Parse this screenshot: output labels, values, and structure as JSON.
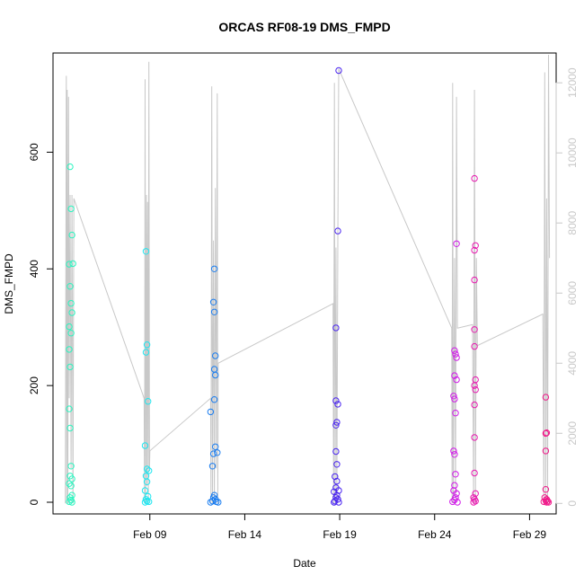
{
  "chart_data": {
    "type": "scatter",
    "title": "ORCAS RF08-19 DMS_FMPD",
    "xlabel": "Date",
    "ylabel": "DMS_FMPD",
    "x_axis": {
      "unit": "days (February 2016)",
      "range": [
        3.9,
        30.4
      ],
      "ticks": [
        {
          "value": 9,
          "label": "Feb 09"
        },
        {
          "value": 14,
          "label": "Feb 14"
        },
        {
          "value": 19,
          "label": "Feb 19"
        },
        {
          "value": 24,
          "label": "Feb 24"
        },
        {
          "value": 29,
          "label": "Feb 29"
        }
      ]
    },
    "y_axis": {
      "range": [
        -20,
        770
      ],
      "ticks": [
        {
          "value": 0,
          "label": "0"
        },
        {
          "value": 200,
          "label": "200"
        },
        {
          "value": 400,
          "label": "400"
        },
        {
          "value": 600,
          "label": "600"
        }
      ]
    },
    "y2_axis": {
      "range": [
        -300,
        12850
      ],
      "color": "#c8c8c8",
      "ticks": [
        {
          "value": 0,
          "label": "0"
        },
        {
          "value": 2000,
          "label": "2000"
        },
        {
          "value": 4000,
          "label": "4000"
        },
        {
          "value": 6000,
          "label": "6000"
        },
        {
          "value": 8000,
          "label": "8000"
        },
        {
          "value": 10000,
          "label": "10000"
        },
        {
          "value": 12000,
          "label": "12000"
        }
      ]
    },
    "grid": false,
    "background_series": {
      "color": "#c8c8c8",
      "points": [
        [
          4.55,
          0
        ],
        [
          4.6,
          12200
        ],
        [
          4.62,
          0
        ],
        [
          4.65,
          11800
        ],
        [
          4.68,
          0
        ],
        [
          4.72,
          11600
        ],
        [
          4.75,
          3000
        ],
        [
          4.8,
          8800
        ],
        [
          4.85,
          1000
        ],
        [
          4.9,
          8800
        ],
        [
          4.95,
          0
        ],
        [
          5.0,
          8700
        ],
        [
          8.7,
          3000
        ],
        [
          8.72,
          0
        ],
        [
          8.75,
          12100
        ],
        [
          8.78,
          0
        ],
        [
          8.82,
          8800
        ],
        [
          8.85,
          500
        ],
        [
          8.88,
          8600
        ],
        [
          8.92,
          0
        ],
        [
          8.95,
          12600
        ],
        [
          8.98,
          1000
        ],
        [
          9.0,
          1500
        ],
        [
          12.2,
          3000
        ],
        [
          12.22,
          0
        ],
        [
          12.26,
          11900
        ],
        [
          12.3,
          0
        ],
        [
          12.35,
          7500
        ],
        [
          12.4,
          0
        ],
        [
          12.45,
          9000
        ],
        [
          12.5,
          1000
        ],
        [
          12.55,
          11700
        ],
        [
          12.58,
          0
        ],
        [
          12.6,
          4000
        ],
        [
          18.65,
          5700
        ],
        [
          18.68,
          0
        ],
        [
          18.72,
          12000
        ],
        [
          18.76,
          0
        ],
        [
          18.8,
          7300
        ],
        [
          18.85,
          0
        ],
        [
          18.9,
          7500
        ],
        [
          18.95,
          12400
        ],
        [
          24.9,
          5000
        ],
        [
          24.92,
          0
        ],
        [
          24.95,
          12000
        ],
        [
          24.98,
          0
        ],
        [
          25.05,
          7000
        ],
        [
          25.1,
          0
        ],
        [
          25.15,
          11600
        ],
        [
          25.2,
          5000
        ],
        [
          26.0,
          5100
        ],
        [
          26.05,
          0
        ],
        [
          26.1,
          11800
        ],
        [
          26.15,
          0
        ],
        [
          26.2,
          7000
        ],
        [
          26.25,
          4500
        ],
        [
          29.7,
          5400
        ],
        [
          29.75,
          0
        ],
        [
          29.8,
          12300
        ],
        [
          29.85,
          0
        ],
        [
          29.9,
          8700
        ],
        [
          29.95,
          0
        ],
        [
          30.0,
          12800
        ],
        [
          30.05,
          7000
        ]
      ]
    },
    "series": [
      {
        "color": "#2bf5c0",
        "points": [
          [
            4.8,
            575
          ],
          [
            4.85,
            503
          ],
          [
            4.9,
            458
          ],
          [
            4.75,
            408
          ],
          [
            4.95,
            409
          ],
          [
            4.8,
            370
          ],
          [
            4.85,
            341
          ],
          [
            4.9,
            325
          ],
          [
            4.75,
            301
          ],
          [
            4.85,
            290
          ],
          [
            4.75,
            262
          ],
          [
            4.8,
            232
          ],
          [
            4.75,
            160
          ],
          [
            4.8,
            127
          ],
          [
            4.85,
            62
          ],
          [
            4.8,
            45
          ],
          [
            4.9,
            40
          ],
          [
            4.75,
            32
          ],
          [
            4.85,
            28
          ],
          [
            4.9,
            12
          ],
          [
            4.8,
            8
          ],
          [
            4.85,
            4
          ],
          [
            4.75,
            1
          ],
          [
            4.9,
            0
          ]
        ]
      },
      {
        "color": "#1fe6f0",
        "points": [
          [
            8.8,
            430
          ],
          [
            8.85,
            270
          ],
          [
            8.8,
            257
          ],
          [
            8.9,
            173
          ],
          [
            8.75,
            97
          ],
          [
            8.85,
            57
          ],
          [
            8.95,
            54
          ],
          [
            8.8,
            45
          ],
          [
            8.85,
            35
          ],
          [
            8.75,
            20
          ],
          [
            8.9,
            10
          ],
          [
            8.8,
            5
          ],
          [
            8.85,
            2
          ],
          [
            8.95,
            1
          ],
          [
            8.75,
            0
          ]
        ]
      },
      {
        "color": "#1c7ef0",
        "points": [
          [
            12.4,
            400
          ],
          [
            12.35,
            343
          ],
          [
            12.4,
            326
          ],
          [
            12.45,
            251
          ],
          [
            12.4,
            228
          ],
          [
            12.45,
            218
          ],
          [
            12.4,
            176
          ],
          [
            12.2,
            155
          ],
          [
            12.45,
            95
          ],
          [
            12.35,
            83
          ],
          [
            12.55,
            85
          ],
          [
            12.3,
            62
          ],
          [
            12.4,
            12
          ],
          [
            12.35,
            8
          ],
          [
            12.45,
            5
          ],
          [
            12.3,
            2
          ],
          [
            12.5,
            1
          ],
          [
            12.6,
            0
          ],
          [
            12.2,
            0
          ]
        ]
      },
      {
        "color": "#4a25f0",
        "points": [
          [
            18.95,
            740
          ],
          [
            18.9,
            465
          ],
          [
            18.8,
            299
          ],
          [
            18.8,
            174
          ],
          [
            18.9,
            168
          ],
          [
            18.85,
            137
          ],
          [
            18.8,
            132
          ],
          [
            18.8,
            87
          ],
          [
            18.85,
            65
          ],
          [
            18.75,
            44
          ],
          [
            18.85,
            36
          ],
          [
            18.8,
            25
          ],
          [
            18.95,
            20
          ],
          [
            18.7,
            18
          ],
          [
            18.85,
            12
          ],
          [
            18.8,
            8
          ],
          [
            18.9,
            5
          ],
          [
            18.75,
            2
          ],
          [
            18.95,
            0
          ],
          [
            18.7,
            0
          ]
        ]
      },
      {
        "color": "#d11ae8",
        "points": [
          [
            25.15,
            443
          ],
          [
            25.05,
            260
          ],
          [
            25.1,
            254
          ],
          [
            25.15,
            248
          ],
          [
            25.05,
            217
          ],
          [
            25.15,
            210
          ],
          [
            25.0,
            182
          ],
          [
            25.05,
            177
          ],
          [
            25.1,
            153
          ],
          [
            25.0,
            88
          ],
          [
            25.05,
            82
          ],
          [
            25.1,
            48
          ],
          [
            25.05,
            29
          ],
          [
            25.0,
            20
          ],
          [
            25.15,
            15
          ],
          [
            25.1,
            8
          ],
          [
            25.05,
            4
          ],
          [
            24.95,
            1
          ],
          [
            25.2,
            0
          ]
        ]
      },
      {
        "color": "#e81ab0",
        "points": [
          [
            26.1,
            555
          ],
          [
            26.15,
            440
          ],
          [
            26.1,
            432
          ],
          [
            26.1,
            381
          ],
          [
            26.1,
            296
          ],
          [
            26.1,
            267
          ],
          [
            26.15,
            210
          ],
          [
            26.1,
            200
          ],
          [
            26.15,
            193
          ],
          [
            26.1,
            167
          ],
          [
            26.1,
            111
          ],
          [
            26.1,
            50
          ],
          [
            26.15,
            15
          ],
          [
            26.05,
            8
          ],
          [
            26.1,
            5
          ],
          [
            26.15,
            2
          ],
          [
            26.05,
            0
          ]
        ]
      },
      {
        "color": "#f01a8a",
        "points": [
          [
            29.85,
            180
          ],
          [
            29.9,
            119
          ],
          [
            29.85,
            118
          ],
          [
            29.85,
            88
          ],
          [
            29.85,
            22
          ],
          [
            29.8,
            8
          ],
          [
            29.9,
            5
          ],
          [
            29.85,
            3
          ],
          [
            29.95,
            2
          ],
          [
            29.75,
            1
          ],
          [
            29.9,
            0
          ],
          [
            30.0,
            0
          ]
        ]
      }
    ]
  }
}
